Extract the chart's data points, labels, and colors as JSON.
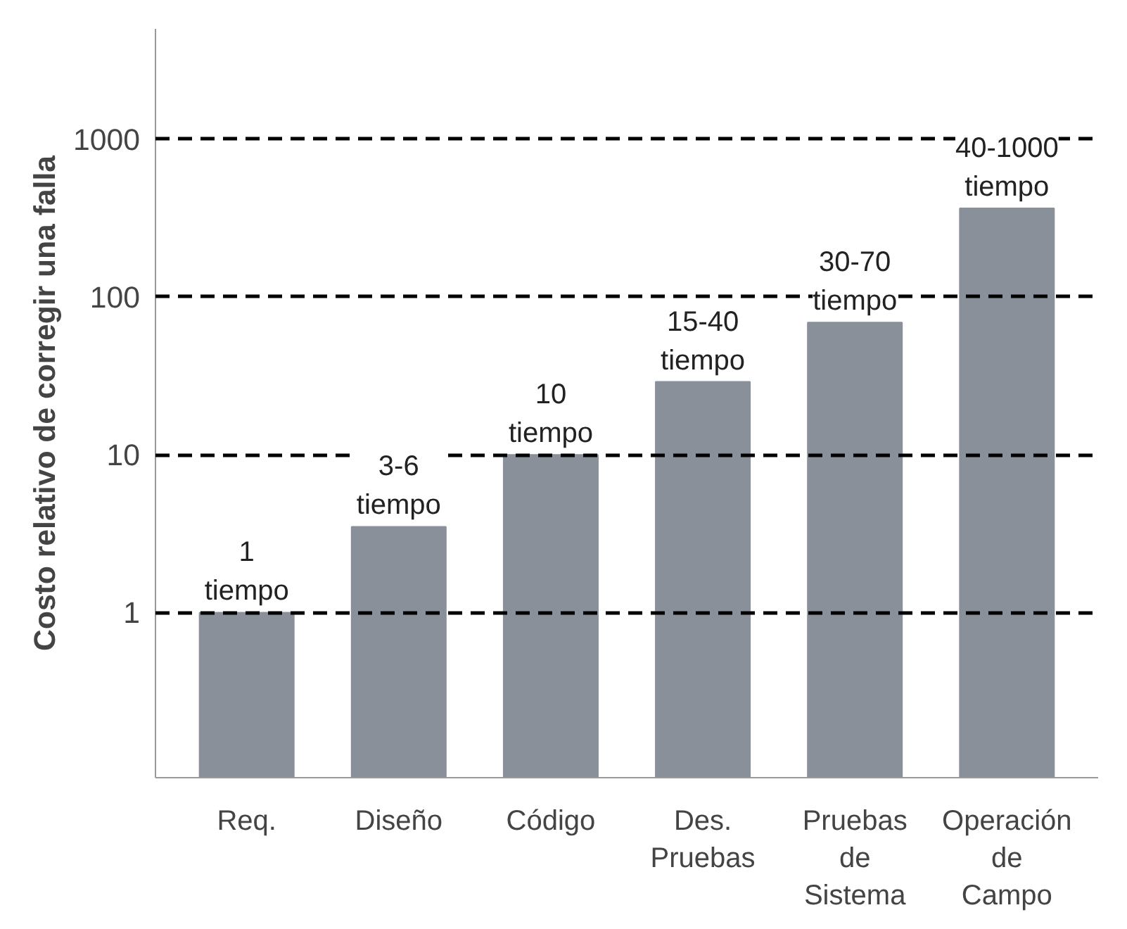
{
  "chart_data": {
    "type": "bar",
    "ylabel": "Costo relativo de corregir una falla",
    "categories": [
      "Req.",
      "Diseño",
      "Código",
      "Des.\nPruebas",
      "Pruebas\nde\nSistema",
      "Operación\nde\nCampo"
    ],
    "values": [
      1,
      3.5,
      10,
      29,
      69,
      365
    ],
    "value_labels": [
      "1\ntiempo",
      "3-6\ntiempo",
      "10\ntiempo",
      "15-40\ntiempo",
      "30-70\ntiempo",
      "40-1000\ntiempo"
    ],
    "color": "#8a9099",
    "log": "y",
    "ylim": [
      0.09,
      5000
    ],
    "yticks": [
      1,
      10,
      100,
      1000
    ],
    "grid": "y"
  }
}
